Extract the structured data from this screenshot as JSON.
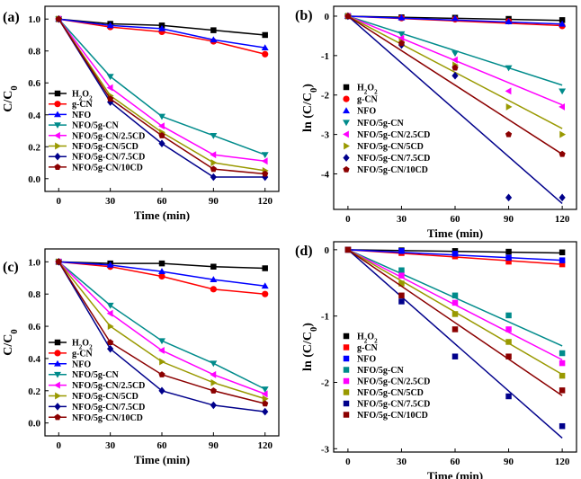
{
  "chart_data": [
    {
      "type": "line",
      "panel_label": "(a)",
      "xlabel": "Time (min)",
      "ylabel": "C/C0",
      "x": [
        0,
        30,
        60,
        90,
        120
      ],
      "xticks": [
        "0",
        "30",
        "60",
        "90",
        "120"
      ],
      "ylim": [
        -0.08,
        1.08
      ],
      "yticks": [
        0.0,
        0.2,
        0.4,
        0.6,
        0.8,
        1.0
      ],
      "ytick_labels": [
        "0.0",
        "0.2",
        "0.4",
        "0.6",
        "0.8",
        "1.0"
      ],
      "legend_position": "bottom-left",
      "series": [
        {
          "name": "H2O2",
          "marker": "square",
          "color": "#000000",
          "values": [
            1.0,
            0.97,
            0.96,
            0.93,
            0.9
          ]
        },
        {
          "name": "g-CN",
          "marker": "circle",
          "color": "#ff0000",
          "values": [
            1.0,
            0.95,
            0.92,
            0.86,
            0.78
          ]
        },
        {
          "name": "NFO",
          "marker": "triangle-up",
          "color": "#0000ff",
          "values": [
            1.0,
            0.96,
            0.94,
            0.87,
            0.82
          ]
        },
        {
          "name": "NFO/5g-CN",
          "marker": "triangle-down",
          "color": "#008b8b",
          "values": [
            1.0,
            0.64,
            0.39,
            0.27,
            0.15
          ]
        },
        {
          "name": "NFO/5g-CN/2.5CD",
          "marker": "triangle-left",
          "color": "#ff00ff",
          "values": [
            1.0,
            0.57,
            0.33,
            0.15,
            0.11
          ]
        },
        {
          "name": "NFO/5g-CN/5CD",
          "marker": "triangle-right",
          "color": "#999900",
          "values": [
            1.0,
            0.52,
            0.29,
            0.1,
            0.05
          ]
        },
        {
          "name": "NFO/5g-CN/7.5CD",
          "marker": "diamond",
          "color": "#00008b",
          "values": [
            1.0,
            0.48,
            0.22,
            0.01,
            0.01
          ]
        },
        {
          "name": "NFO/5g-CN/10CD",
          "marker": "pentagon",
          "color": "#8b0000",
          "values": [
            1.0,
            0.5,
            0.27,
            0.06,
            0.03
          ]
        }
      ]
    },
    {
      "type": "scatter",
      "panel_label": "(b)",
      "xlabel": "Time (min)",
      "ylabel": "ln (C/C0)",
      "x": [
        0,
        30,
        60,
        90,
        120
      ],
      "xticks": [
        "0",
        "30",
        "60",
        "90",
        "120"
      ],
      "ylim": [
        -4.9,
        0.25
      ],
      "yticks": [
        0,
        -1,
        -2,
        -3,
        -4
      ],
      "ytick_labels": [
        "0",
        "-1",
        "-2",
        "-3",
        "-4"
      ],
      "legend_position": "bottom-left",
      "series": [
        {
          "name": "H2O2",
          "marker": "square",
          "color": "#000000",
          "values": [
            0,
            -0.03,
            -0.04,
            -0.07,
            -0.1
          ],
          "fit_end": -0.11
        },
        {
          "name": "g-CN",
          "marker": "circle",
          "color": "#ff0000",
          "values": [
            0,
            -0.05,
            -0.08,
            -0.13,
            -0.25
          ],
          "fit_end": -0.24
        },
        {
          "name": "NFO",
          "marker": "triangle-up",
          "color": "#0000ff",
          "values": [
            0,
            -0.04,
            -0.06,
            -0.14,
            -0.2
          ],
          "fit_end": -0.2
        },
        {
          "name": "NFO/5g-CN",
          "marker": "triangle-down",
          "color": "#008b8b",
          "values": [
            0,
            -0.45,
            -0.94,
            -1.31,
            -1.9
          ],
          "fit_end": -1.75
        },
        {
          "name": "NFO/5g-CN/2.5CD",
          "marker": "triangle-left",
          "color": "#ff00ff",
          "values": [
            0,
            -0.56,
            -1.11,
            -1.9,
            -2.3
          ],
          "fit_end": -2.25
        },
        {
          "name": "NFO/5g-CN/5CD",
          "marker": "triangle-right",
          "color": "#999900",
          "values": [
            0,
            -0.65,
            -1.24,
            -2.3,
            -3.0
          ],
          "fit_end": -2.85
        },
        {
          "name": "NFO/5g-CN/7.5CD",
          "marker": "diamond",
          "color": "#00008b",
          "values": [
            0,
            -0.73,
            -1.51,
            -4.6,
            -4.6
          ],
          "fit_end": -4.75
        },
        {
          "name": "NFO/5g-CN/10CD",
          "marker": "pentagon",
          "color": "#8b0000",
          "values": [
            0,
            -0.69,
            -1.31,
            -3.0,
            -3.5
          ],
          "fit_end": -3.5
        }
      ]
    },
    {
      "type": "line",
      "panel_label": "(c)",
      "xlabel": "Time (min)",
      "ylabel": "C/C0",
      "x": [
        0,
        30,
        60,
        90,
        120
      ],
      "xticks": [
        "0",
        "30",
        "60",
        "90",
        "120"
      ],
      "ylim": [
        -0.08,
        1.08
      ],
      "yticks": [
        0.0,
        0.2,
        0.4,
        0.6,
        0.8,
        1.0
      ],
      "ytick_labels": [
        "0.0",
        "0.2",
        "0.4",
        "0.6",
        "0.8",
        "1.0"
      ],
      "legend_position": "bottom-left",
      "series": [
        {
          "name": "H2O2",
          "marker": "square",
          "color": "#000000",
          "values": [
            1.0,
            0.99,
            0.99,
            0.97,
            0.96
          ]
        },
        {
          "name": "g-CN",
          "marker": "circle",
          "color": "#ff0000",
          "values": [
            1.0,
            0.97,
            0.91,
            0.83,
            0.8
          ]
        },
        {
          "name": "NFO",
          "marker": "triangle-up",
          "color": "#0000ff",
          "values": [
            1.0,
            0.98,
            0.94,
            0.89,
            0.85
          ]
        },
        {
          "name": "NFO/5g-CN",
          "marker": "triangle-down",
          "color": "#008b8b",
          "values": [
            1.0,
            0.73,
            0.51,
            0.37,
            0.21
          ]
        },
        {
          "name": "NFO/5g-CN/2.5CD",
          "marker": "triangle-left",
          "color": "#ff00ff",
          "values": [
            1.0,
            0.68,
            0.45,
            0.3,
            0.18
          ]
        },
        {
          "name": "NFO/5g-CN/5CD",
          "marker": "triangle-right",
          "color": "#999900",
          "values": [
            1.0,
            0.6,
            0.38,
            0.25,
            0.15
          ]
        },
        {
          "name": "NFO/5g-CN/7.5CD",
          "marker": "diamond",
          "color": "#00008b",
          "values": [
            1.0,
            0.46,
            0.2,
            0.11,
            0.07
          ]
        },
        {
          "name": "NFO/5g-CN/10CD",
          "marker": "pentagon",
          "color": "#8b0000",
          "values": [
            1.0,
            0.5,
            0.3,
            0.2,
            0.12
          ]
        }
      ]
    },
    {
      "type": "scatter",
      "panel_label": "(d)",
      "xlabel": "Time (min)",
      "ylabel": "ln (C/C0)",
      "x": [
        0,
        30,
        60,
        90,
        120
      ],
      "xticks": [
        "0",
        "30",
        "60",
        "90",
        "120"
      ],
      "ylim": [
        -3.05,
        0.12
      ],
      "yticks": [
        0,
        -1,
        -2,
        -3
      ],
      "ytick_labels": [
        "0",
        "-1",
        "-2",
        "-3"
      ],
      "legend_position": "bottom-left",
      "series": [
        {
          "name": "H2O2",
          "marker": "square",
          "color": "#000000",
          "values": [
            0,
            -0.01,
            -0.02,
            -0.03,
            -0.04
          ],
          "fit_end": -0.05
        },
        {
          "name": "g-CN",
          "marker": "square",
          "color": "#ff0000",
          "values": [
            0,
            -0.05,
            -0.1,
            -0.18,
            -0.22
          ],
          "fit_end": -0.22
        },
        {
          "name": "NFO",
          "marker": "square",
          "color": "#0000ff",
          "values": [
            0,
            -0.02,
            -0.06,
            -0.12,
            -0.16
          ],
          "fit_end": -0.16
        },
        {
          "name": "NFO/5g-CN",
          "marker": "square",
          "color": "#008b8b",
          "values": [
            0,
            -0.31,
            -0.69,
            -0.99,
            -1.56
          ],
          "fit_end": -1.45
        },
        {
          "name": "NFO/5g-CN/2.5CD",
          "marker": "square",
          "color": "#ff00ff",
          "values": [
            0,
            -0.39,
            -0.8,
            -1.2,
            -1.71
          ],
          "fit_end": -1.66
        },
        {
          "name": "NFO/5g-CN/5CD",
          "marker": "square",
          "color": "#999900",
          "values": [
            0,
            -0.51,
            -0.97,
            -1.39,
            -1.9
          ],
          "fit_end": -1.88
        },
        {
          "name": "NFO/5g-CN/7.5CD",
          "marker": "square",
          "color": "#00008b",
          "values": [
            0,
            -0.78,
            -1.61,
            -2.21,
            -2.66
          ],
          "fit_end": -2.84
        },
        {
          "name": "NFO/5g-CN/10CD",
          "marker": "square",
          "color": "#8b0000",
          "values": [
            0,
            -0.69,
            -1.2,
            -1.61,
            -2.12
          ],
          "fit_end": -2.2
        }
      ]
    }
  ]
}
